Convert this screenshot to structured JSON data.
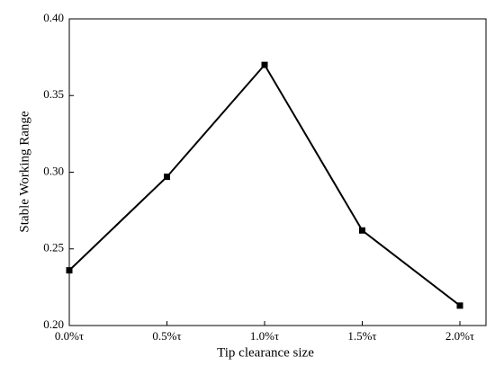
{
  "chart_data": {
    "type": "line",
    "x_label": "Tip clearance size",
    "y_label": "Stable Working Range",
    "categories": [
      "0.0%τ",
      "0.5%τ",
      "1.0%τ",
      "1.5%τ",
      "2.0%τ"
    ],
    "values": [
      0.236,
      0.297,
      0.37,
      0.262,
      0.213
    ],
    "color": "#000000",
    "marker": "square",
    "ylim": [
      0.2,
      0.4
    ],
    "yticks": [
      {
        "value": 0.2,
        "label": "0.20"
      },
      0.25,
      {
        "value": 0.3,
        "label": "0.30"
      },
      0.35,
      {
        "value": 0.4,
        "label": "0.40"
      }
    ]
  }
}
